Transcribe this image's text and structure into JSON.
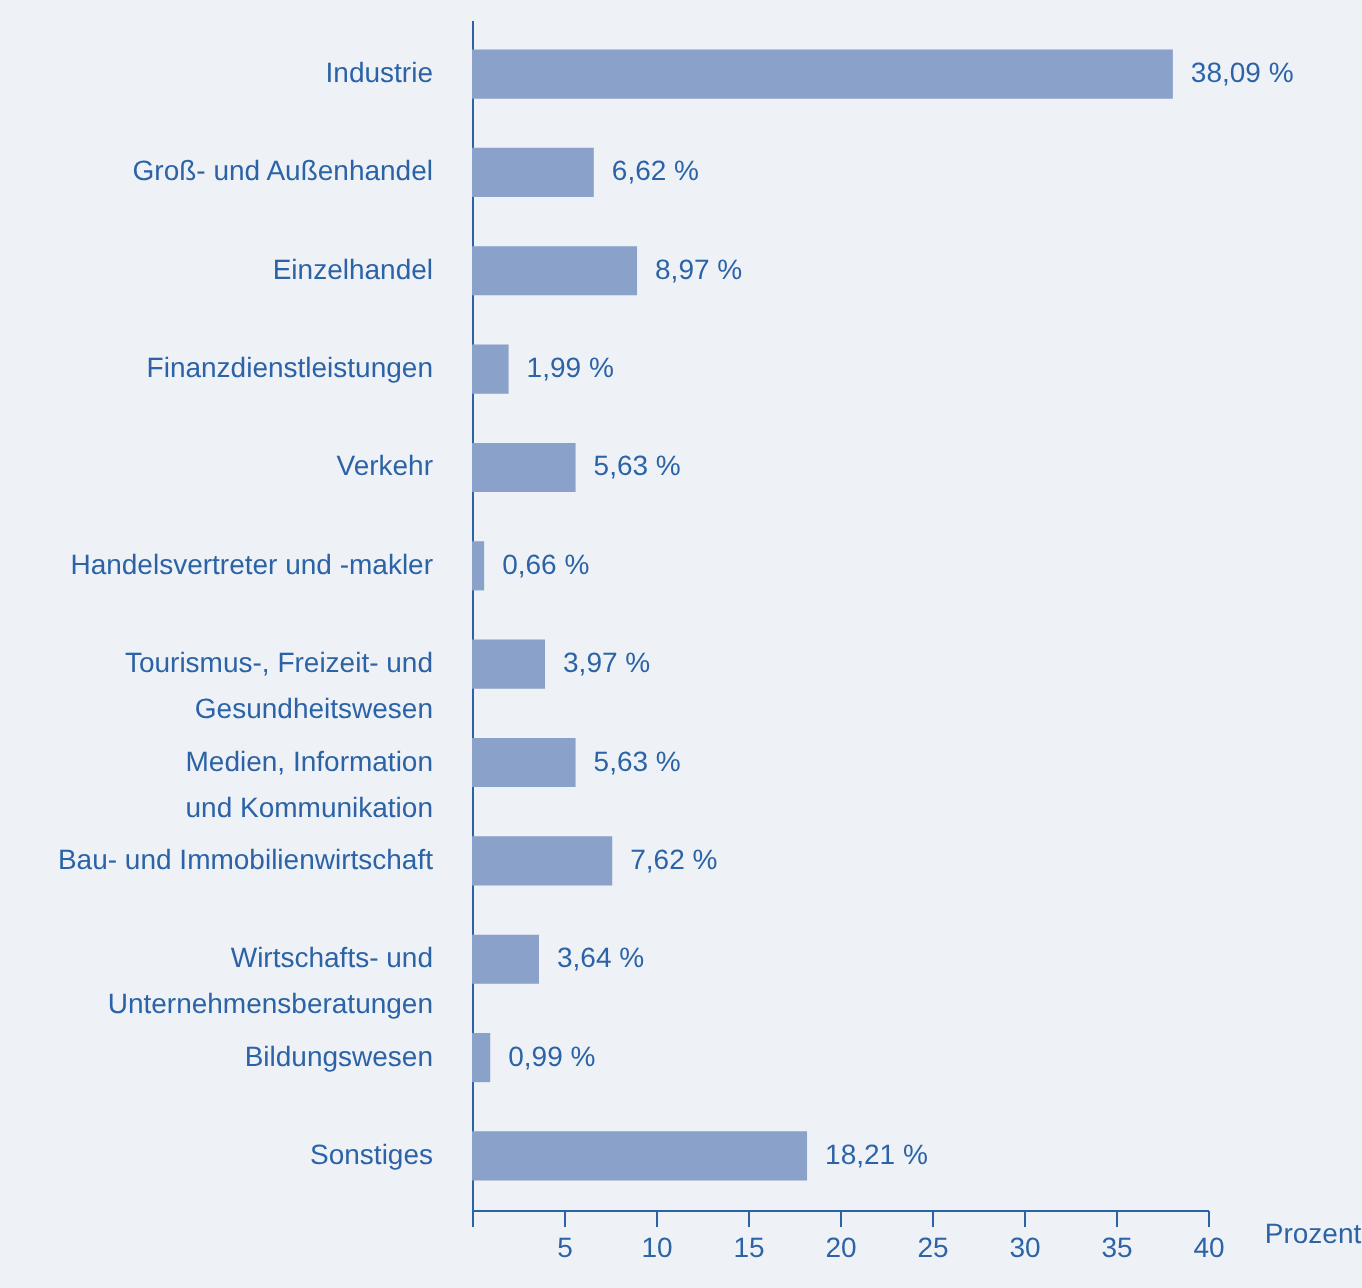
{
  "chart_data": {
    "type": "bar",
    "orientation": "horizontal",
    "xlabel": "Prozent",
    "categories": [
      "Industrie",
      "Groß- und Außenhandel",
      "Einzelhandel",
      "Finanzdienstleistungen",
      "Verkehr",
      "Handelsvertreter und -makler",
      "Tourismus-, Freizeit- und\nGesundheitswesen",
      "Medien, Information\nund Kommunikation",
      "Bau- und Immobilienwirtschaft",
      "Wirtschafts- und\nUnternehmensberatungen",
      "Bildungswesen",
      "Sonstiges"
    ],
    "values": [
      38.09,
      6.62,
      8.97,
      1.99,
      5.63,
      0.66,
      3.97,
      5.63,
      7.62,
      3.64,
      0.99,
      18.21
    ],
    "value_labels": [
      "38,09 %",
      "6,62 %",
      "8,97 %",
      "1,99 %",
      "5,63 %",
      "0,66 %",
      "3,97 %",
      "5,63 %",
      "7,62 %",
      "3,64 %",
      "0,99 %",
      "18,21 %"
    ],
    "color": "#8aa1c9",
    "xlim": [
      0,
      40
    ],
    "xticks": [
      {
        "value": 0,
        "label": null
      },
      5,
      10,
      15,
      20,
      25,
      30,
      35,
      40
    ],
    "grid": false
  }
}
